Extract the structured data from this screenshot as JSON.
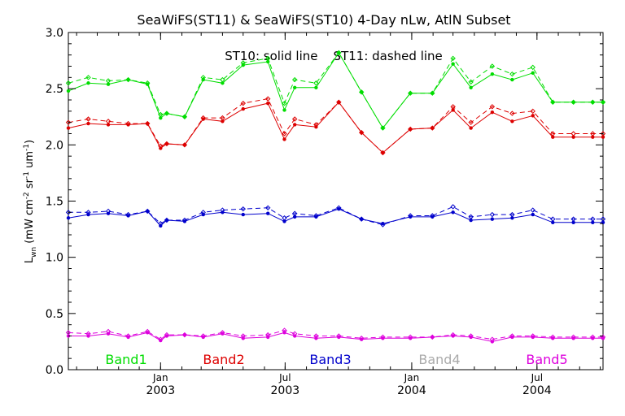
{
  "chart_data": {
    "type": "line",
    "title": "SeaWiFS(ST11) & SeaWiFS(ST10) 4-Day nLw, AtlN Subset",
    "annotation": "ST10: solid line    ST11: dashed line",
    "xlabel": "",
    "ylabel_main": "L",
    "ylabel_sub": "wn",
    "ylabel_units": "(mW cm",
    "ylabel_exp1": "-2",
    "ylabel_mid": " sr",
    "ylabel_exp2": "-1",
    "ylabel_mid2": " um",
    "ylabel_exp3": "-1",
    "ylabel_end": ")",
    "xlim": [
      "2002-08-20",
      "2004-10-05"
    ],
    "ylim": [
      0.0,
      3.0
    ],
    "grid": false,
    "x_ticks": [
      {
        "date": "2003-01-01",
        "month": "Jan",
        "year": "2003"
      },
      {
        "date": "2003-07-01",
        "month": "Jul",
        "year": "2003"
      },
      {
        "date": "2004-01-01",
        "month": "Jan",
        "year": "2004"
      },
      {
        "date": "2004-07-01",
        "month": "Jul",
        "year": "2004"
      }
    ],
    "y_ticks": [
      "0.0",
      "0.5",
      "1.0",
      "1.5",
      "2.0",
      "2.5",
      "3.0"
    ],
    "y_tick_values": [
      0.0,
      0.5,
      1.0,
      1.5,
      2.0,
      2.5,
      3.0
    ],
    "legend": [
      {
        "label": "Band1",
        "color": "#00dd00"
      },
      {
        "label": "Band2",
        "color": "#dd0000"
      },
      {
        "label": "Band3",
        "color": "#0000cc"
      },
      {
        "label": "Band4",
        "color": "#aaaaaa"
      },
      {
        "label": "Band5",
        "color": "#dd00dd"
      }
    ],
    "x": [
      "2002-08-20",
      "2002-09-18",
      "2002-10-17",
      "2002-11-15",
      "2002-12-13",
      "2003-01-01",
      "2003-01-10",
      "2003-02-05",
      "2003-03-04",
      "2003-04-01",
      "2003-05-01",
      "2003-06-06",
      "2003-06-30",
      "2003-07-15",
      "2003-08-15",
      "2003-09-17",
      "2003-10-20",
      "2003-11-20",
      "2003-12-30",
      "2004-01-31",
      "2004-03-01",
      "2004-03-27",
      "2004-04-27",
      "2004-05-26",
      "2004-06-25",
      "2004-07-24",
      "2004-08-23",
      "2004-09-20",
      "2004-10-05"
    ],
    "series": [
      {
        "name": "Band1 ST10",
        "color": "#00dd00",
        "dashed": false,
        "values": [
          2.48,
          2.55,
          2.54,
          2.58,
          2.54,
          2.24,
          2.28,
          2.25,
          2.58,
          2.55,
          2.71,
          2.74,
          2.31,
          2.51,
          2.51,
          2.82,
          2.47,
          2.15,
          2.46,
          2.46,
          2.72,
          2.51,
          2.63,
          2.58,
          2.64,
          2.38,
          2.38,
          2.38,
          2.38
        ]
      },
      {
        "name": "Band1 ST11",
        "color": "#00dd00",
        "dashed": true,
        "values": [
          2.55,
          2.6,
          2.57,
          2.58,
          2.55,
          2.27,
          2.28,
          2.25,
          2.6,
          2.58,
          2.73,
          2.77,
          2.37,
          2.58,
          2.55,
          2.82,
          2.47,
          2.15,
          2.46,
          2.46,
          2.77,
          2.56,
          2.7,
          2.63,
          2.69,
          2.38,
          2.38,
          2.38,
          2.38
        ]
      },
      {
        "name": "Band2 ST10",
        "color": "#dd0000",
        "dashed": false,
        "values": [
          2.15,
          2.19,
          2.18,
          2.18,
          2.19,
          1.97,
          2.01,
          2.0,
          2.23,
          2.21,
          2.32,
          2.37,
          2.05,
          2.18,
          2.16,
          2.38,
          2.11,
          1.93,
          2.14,
          2.15,
          2.31,
          2.15,
          2.29,
          2.21,
          2.26,
          2.07,
          2.07,
          2.07,
          2.07
        ]
      },
      {
        "name": "Band2 ST11",
        "color": "#dd0000",
        "dashed": true,
        "values": [
          2.2,
          2.23,
          2.21,
          2.19,
          2.19,
          1.99,
          2.01,
          2.0,
          2.24,
          2.24,
          2.37,
          2.41,
          2.1,
          2.23,
          2.18,
          2.38,
          2.11,
          1.93,
          2.14,
          2.15,
          2.34,
          2.2,
          2.34,
          2.28,
          2.3,
          2.1,
          2.1,
          2.1,
          2.1
        ]
      },
      {
        "name": "Band3 ST10",
        "color": "#0000cc",
        "dashed": false,
        "values": [
          1.35,
          1.38,
          1.39,
          1.37,
          1.41,
          1.28,
          1.33,
          1.32,
          1.38,
          1.4,
          1.38,
          1.39,
          1.32,
          1.36,
          1.36,
          1.43,
          1.34,
          1.3,
          1.36,
          1.36,
          1.4,
          1.33,
          1.34,
          1.35,
          1.38,
          1.31,
          1.31,
          1.31,
          1.31
        ]
      },
      {
        "name": "Band3 ST11",
        "color": "#0000cc",
        "dashed": true,
        "values": [
          1.4,
          1.4,
          1.41,
          1.38,
          1.41,
          1.3,
          1.33,
          1.33,
          1.4,
          1.42,
          1.43,
          1.44,
          1.35,
          1.39,
          1.37,
          1.44,
          1.34,
          1.29,
          1.37,
          1.37,
          1.45,
          1.36,
          1.38,
          1.38,
          1.42,
          1.34,
          1.34,
          1.34,
          1.34
        ]
      },
      {
        "name": "Band5 ST10",
        "color": "#dd00dd",
        "dashed": false,
        "values": [
          0.3,
          0.3,
          0.32,
          0.29,
          0.33,
          0.26,
          0.3,
          0.31,
          0.29,
          0.32,
          0.28,
          0.29,
          0.33,
          0.3,
          0.28,
          0.29,
          0.27,
          0.28,
          0.28,
          0.29,
          0.3,
          0.29,
          0.25,
          0.29,
          0.29,
          0.28,
          0.28,
          0.28,
          0.28
        ]
      },
      {
        "name": "Band5 ST11",
        "color": "#dd00dd",
        "dashed": true,
        "values": [
          0.33,
          0.32,
          0.34,
          0.3,
          0.34,
          0.27,
          0.31,
          0.31,
          0.3,
          0.33,
          0.3,
          0.31,
          0.35,
          0.32,
          0.3,
          0.3,
          0.28,
          0.29,
          0.29,
          0.29,
          0.31,
          0.3,
          0.27,
          0.3,
          0.3,
          0.29,
          0.29,
          0.29,
          0.29
        ]
      }
    ]
  }
}
